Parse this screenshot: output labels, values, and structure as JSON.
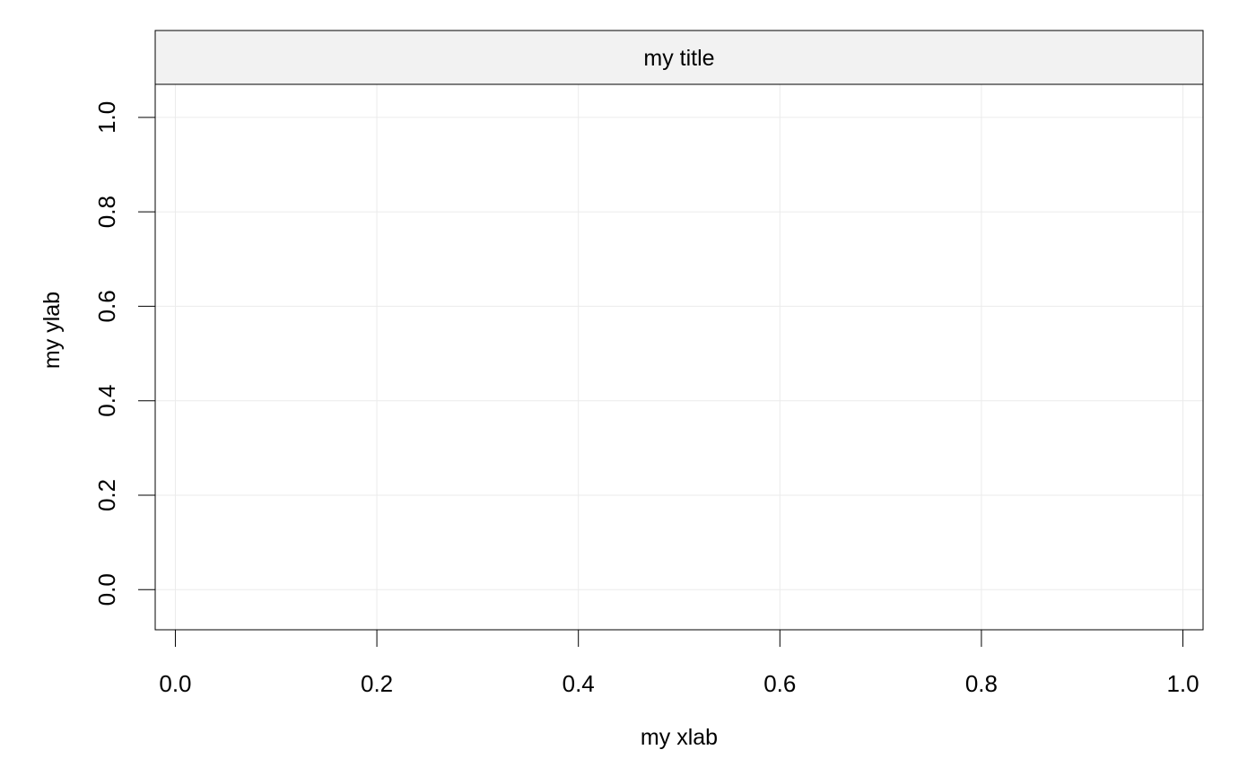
{
  "chart_data": {
    "type": "scatter",
    "title": "my title",
    "xlabel": "my xlab",
    "ylabel": "my ylab",
    "x": [],
    "y": [],
    "xlim": [
      -0.02,
      1.02
    ],
    "ylim": [
      -0.085,
      1.07
    ],
    "xticks": [
      0.0,
      0.2,
      0.4,
      0.6,
      0.8,
      1.0
    ],
    "yticks": [
      0.0,
      0.2,
      0.4,
      0.6,
      0.8,
      1.0
    ],
    "xtick_labels": [
      "0.0",
      "0.2",
      "0.4",
      "0.6",
      "0.8",
      "1.0"
    ],
    "ytick_labels": [
      "0.0",
      "0.2",
      "0.4",
      "0.6",
      "0.8",
      "1.0"
    ],
    "grid": true,
    "colors": {
      "grid": "#ebebeb",
      "strip_fill": "#f2f2f2",
      "frame": "#000000"
    }
  }
}
